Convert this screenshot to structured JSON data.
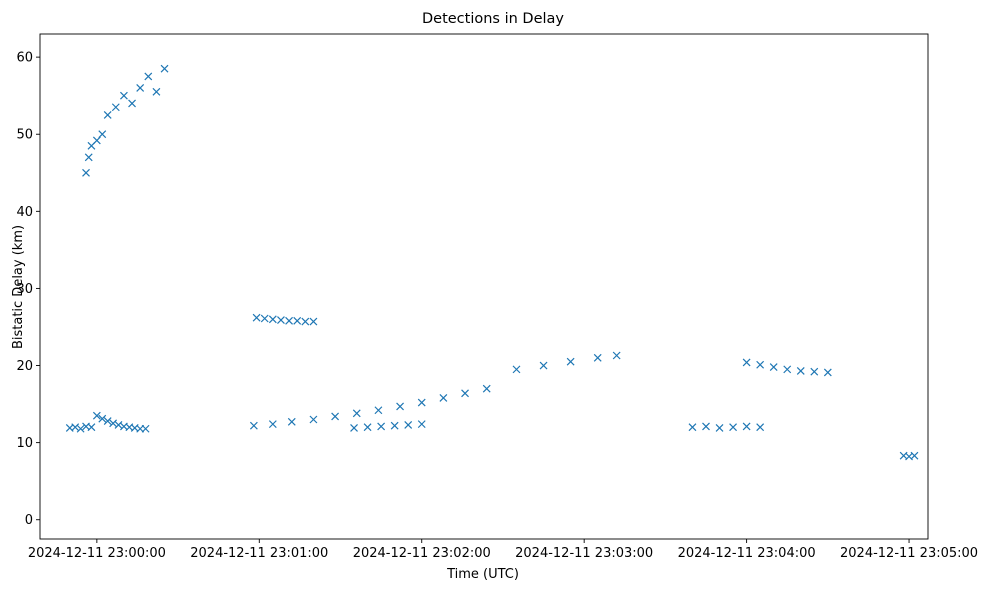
{
  "chart_data": {
    "type": "scatter",
    "title": "Detections in Delay",
    "xlabel": "Time (UTC)",
    "ylabel": "Bistatic Delay (km)",
    "xlim": [
      "2024-12-11 22:59:39",
      "2024-12-11 23:05:07"
    ],
    "ylim": [
      -2.5,
      63
    ],
    "x_ticks": [
      "2024-12-11 23:00:00",
      "2024-12-11 23:01:00",
      "2024-12-11 23:02:00",
      "2024-12-11 23:03:00",
      "2024-12-11 23:04:00",
      "2024-12-11 23:05:00"
    ],
    "y_ticks": [
      0,
      10,
      20,
      30,
      40,
      50,
      60
    ],
    "grid": false,
    "marker": "x",
    "series": [
      {
        "color": "#1f77b4",
        "x": [
          "2024-12-11 22:59:50",
          "2024-12-11 22:59:52",
          "2024-12-11 22:59:54",
          "2024-12-11 22:59:56",
          "2024-12-11 22:59:58",
          "2024-12-11 23:00:00",
          "2024-12-11 23:00:02",
          "2024-12-11 23:00:04",
          "2024-12-11 23:00:06",
          "2024-12-11 23:00:08",
          "2024-12-11 23:00:10",
          "2024-12-11 23:00:12",
          "2024-12-11 23:00:14",
          "2024-12-11 23:00:16",
          "2024-12-11 23:00:18",
          "2024-12-11 22:59:56",
          "2024-12-11 22:59:57",
          "2024-12-11 22:59:58",
          "2024-12-11 23:00:00",
          "2024-12-11 23:00:02",
          "2024-12-11 23:00:04",
          "2024-12-11 23:00:07",
          "2024-12-11 23:00:10",
          "2024-12-11 23:00:13",
          "2024-12-11 23:00:16",
          "2024-12-11 23:00:19",
          "2024-12-11 23:00:22",
          "2024-12-11 23:00:25",
          "2024-12-11 23:00:59",
          "2024-12-11 23:01:02",
          "2024-12-11 23:01:05",
          "2024-12-11 23:01:08",
          "2024-12-11 23:01:11",
          "2024-12-11 23:01:14",
          "2024-12-11 23:01:17",
          "2024-12-11 23:01:20",
          "2024-12-11 23:00:58",
          "2024-12-11 23:01:05",
          "2024-12-11 23:01:12",
          "2024-12-11 23:01:20",
          "2024-12-11 23:01:28",
          "2024-12-11 23:01:36",
          "2024-12-11 23:01:44",
          "2024-12-11 23:01:52",
          "2024-12-11 23:02:00",
          "2024-12-11 23:02:08",
          "2024-12-11 23:02:16",
          "2024-12-11 23:02:24",
          "2024-12-11 23:01:35",
          "2024-12-11 23:01:40",
          "2024-12-11 23:01:45",
          "2024-12-11 23:01:50",
          "2024-12-11 23:01:55",
          "2024-12-11 23:02:00",
          "2024-12-11 23:02:35",
          "2024-12-11 23:02:45",
          "2024-12-11 23:02:55",
          "2024-12-11 23:03:05",
          "2024-12-11 23:03:12",
          "2024-12-11 23:04:00",
          "2024-12-11 23:04:05",
          "2024-12-11 23:04:10",
          "2024-12-11 23:04:15",
          "2024-12-11 23:04:20",
          "2024-12-11 23:04:25",
          "2024-12-11 23:04:30",
          "2024-12-11 23:03:40",
          "2024-12-11 23:03:45",
          "2024-12-11 23:03:50",
          "2024-12-11 23:03:55",
          "2024-12-11 23:04:00",
          "2024-12-11 23:04:05",
          "2024-12-11 23:04:58",
          "2024-12-11 23:05:00",
          "2024-12-11 23:05:02"
        ],
        "y": [
          11.9,
          12.0,
          11.8,
          12.1,
          12.0,
          13.5,
          13.1,
          12.8,
          12.5,
          12.3,
          12.1,
          12.0,
          11.9,
          11.8,
          11.8,
          45.0,
          47.0,
          48.5,
          49.2,
          50.0,
          52.5,
          53.5,
          55.0,
          54.0,
          56.0,
          57.5,
          55.5,
          58.5,
          26.2,
          26.1,
          26.0,
          25.9,
          25.8,
          25.8,
          25.7,
          25.7,
          12.2,
          12.4,
          12.7,
          13.0,
          13.4,
          13.8,
          14.2,
          14.7,
          15.2,
          15.8,
          16.4,
          17.0,
          11.9,
          12.0,
          12.1,
          12.2,
          12.3,
          12.4,
          19.5,
          20.0,
          20.5,
          21.0,
          21.3,
          20.4,
          20.1,
          19.8,
          19.5,
          19.3,
          19.2,
          19.1,
          12.0,
          12.1,
          11.9,
          12.0,
          12.1,
          12.0,
          8.3,
          8.2,
          8.3
        ]
      }
    ]
  }
}
